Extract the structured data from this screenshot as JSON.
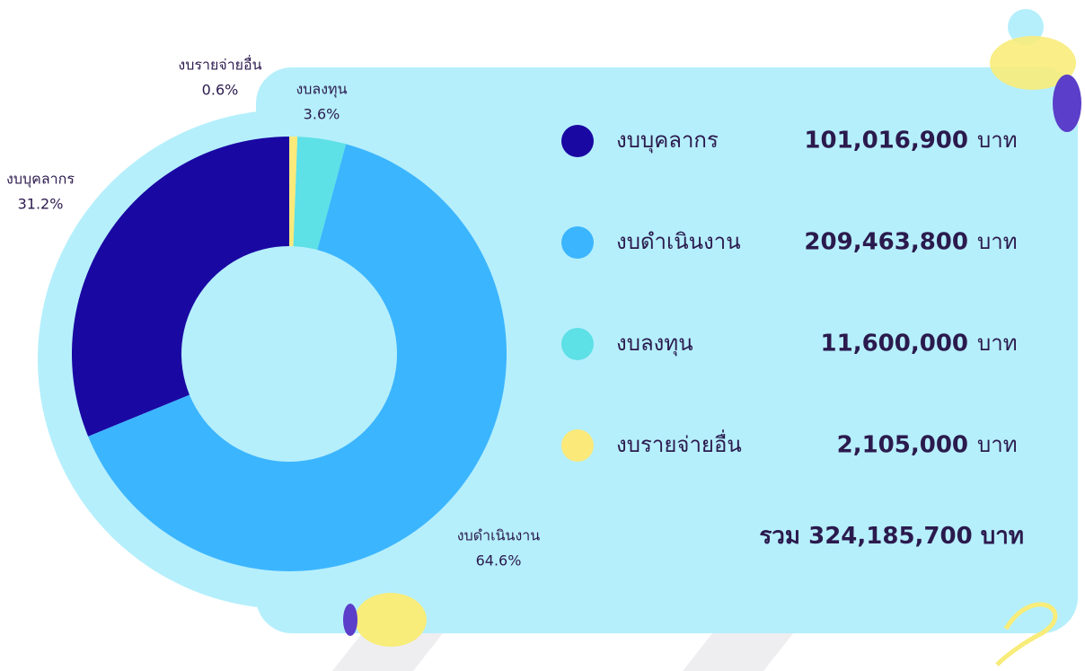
{
  "chart_data": {
    "type": "pie",
    "categories": [
      "งบบุคลากร",
      "งบดำเนินงาน",
      "งบลงทุน",
      "งบรายจ่ายอื่น"
    ],
    "values": [
      31.2,
      64.6,
      3.6,
      0.6
    ],
    "value_labels": [
      "31.2%",
      "64.6%",
      "3.6%",
      "0.6%"
    ],
    "colors": [
      "#1a08a3",
      "#3cb5ff",
      "#5de0e6",
      "#fbe97a"
    ],
    "amounts": [
      {
        "value": 101016900,
        "label": "101,016,900"
      },
      {
        "value": 209463800,
        "label": "209,463,800"
      },
      {
        "value": 11600000,
        "label": "11,600,000"
      },
      {
        "value": 2105000,
        "label": "2,105,000"
      }
    ],
    "unit": "บาท",
    "total_label": "รวม",
    "total": {
      "value": 324185700,
      "label": "324,185,700"
    }
  }
}
